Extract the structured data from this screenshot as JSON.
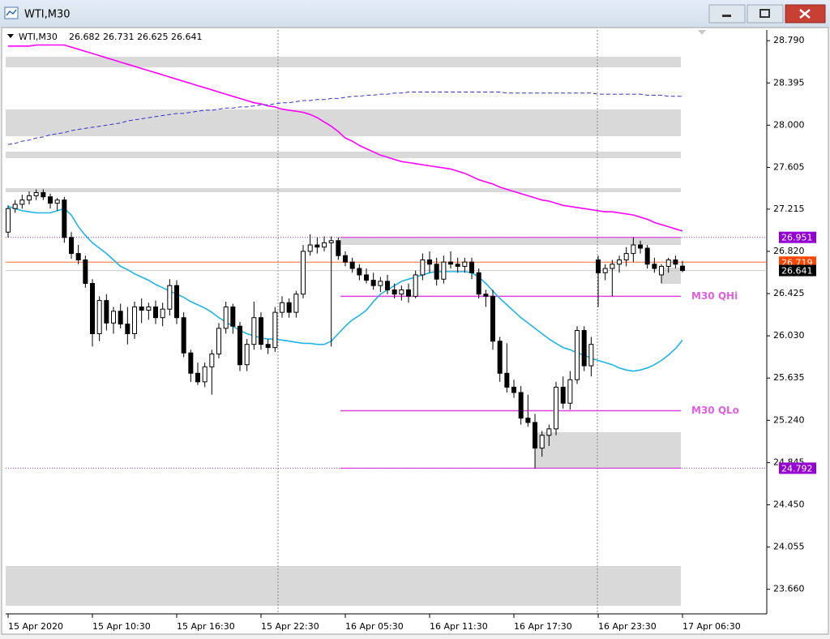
{
  "chart_data": {
    "type": "candlestick",
    "symbol": "WTI,M30",
    "categories": [
      "15 Apr 2020",
      null,
      null,
      null,
      null,
      null,
      null,
      null,
      null,
      null,
      null,
      null,
      "15 Apr 10:30",
      null,
      null,
      null,
      null,
      null,
      null,
      null,
      null,
      null,
      null,
      null,
      "15 Apr 16:30",
      null,
      null,
      null,
      null,
      null,
      null,
      null,
      null,
      null,
      null,
      null,
      "15 Apr 22:30",
      null,
      null,
      null,
      null,
      null,
      null,
      null,
      null,
      null,
      null,
      null,
      "16 Apr 05:30",
      null,
      null,
      null,
      null,
      null,
      null,
      null,
      null,
      null,
      null,
      null,
      "16 Apr 11:30",
      null,
      null,
      null,
      null,
      null,
      null,
      null,
      null,
      null,
      null,
      null,
      "16 Apr 17:30",
      null,
      null,
      null,
      null,
      null,
      null,
      null,
      null,
      null,
      null,
      null,
      "16 Apr 23:30",
      null,
      null,
      null,
      null,
      null,
      null,
      null,
      null,
      null,
      null,
      null,
      "17 Apr 06:30"
    ],
    "open": [
      27,
      27.22,
      27.26,
      27.3,
      27.34,
      27.37,
      27.33,
      27.27,
      27.3,
      26.95,
      26.8,
      26.74,
      26.52,
      26.05,
      26.36,
      26.15,
      26.26,
      26.14,
      26.05,
      26.3,
      26.27,
      26.3,
      26.2,
      26.28,
      26.5,
      26.2,
      25.87,
      25.68,
      25.6,
      25.74,
      25.86,
      26.1,
      26.3,
      26.12,
      25.76,
      25.95,
      26.2,
      25.95,
      25.92,
      26.25,
      26.34,
      26.25,
      26.42,
      26.82,
      26.88,
      26.86,
      26.9,
      26.92,
      26.78,
      26.72,
      26.66,
      26.6,
      26.55,
      26.5,
      26.54,
      26.46,
      26.42,
      26.46,
      26.4,
      26.6,
      26.74,
      26.7,
      26.56,
      26.72,
      26.7,
      26.68,
      26.72,
      26.62,
      26.42,
      26.4,
      25.98,
      25.68,
      25.55,
      25.5,
      25.26,
      25.22,
      24.98,
      25.1,
      25.16,
      25.55,
      25.4,
      25.62,
      26.08,
      25.75,
      26.74,
      26.62,
      26.66,
      26.7,
      26.74,
      26.8,
      26.88,
      26.85,
      26.7,
      26.6,
      26.68,
      26.74,
      26.682
    ],
    "high": [
      27.25,
      27.3,
      27.35,
      27.38,
      27.4,
      27.4,
      27.36,
      27.32,
      27.33,
      27,
      26.88,
      26.78,
      26.56,
      26.4,
      26.42,
      26.3,
      26.33,
      26.3,
      26.35,
      26.38,
      26.34,
      26.36,
      26.34,
      26.56,
      26.55,
      26.25,
      25.9,
      25.78,
      25.78,
      25.9,
      26.15,
      26.35,
      26.33,
      26.16,
      26,
      26.35,
      26.25,
      26,
      26.3,
      26.4,
      26.38,
      26.45,
      26.88,
      26.98,
      26.95,
      26.96,
      26.96,
      26.95,
      26.82,
      26.76,
      26.7,
      26.66,
      26.62,
      26.58,
      26.6,
      26.52,
      26.5,
      26.52,
      26.64,
      26.8,
      26.82,
      26.76,
      26.78,
      26.82,
      26.76,
      26.76,
      26.76,
      26.66,
      26.46,
      26.46,
      26.02,
      25.96,
      25.62,
      25.56,
      25.48,
      25.3,
      25.14,
      25.2,
      25.6,
      25.65,
      25.7,
      26.12,
      26.12,
      26.02,
      26.78,
      26.7,
      26.74,
      26.78,
      26.86,
      26.951,
      26.92,
      26.88,
      26.76,
      26.7,
      26.76,
      26.78,
      26.731
    ],
    "low": [
      26.95,
      27.18,
      27.22,
      27.26,
      27.3,
      27.3,
      27.22,
      27.2,
      26.9,
      26.75,
      26.7,
      26.48,
      25.93,
      25.98,
      26.08,
      26.05,
      26.1,
      25.95,
      26,
      26.15,
      26.18,
      26.14,
      26.12,
      26.22,
      26.14,
      25.83,
      25.6,
      25.57,
      25.55,
      25.48,
      25.82,
      26.05,
      26.05,
      25.7,
      25.7,
      25.9,
      25.9,
      25.86,
      25.88,
      26.2,
      26.2,
      26.2,
      26.38,
      26.78,
      26.8,
      26.82,
      25.93,
      26.74,
      26.68,
      26.62,
      26.55,
      26.52,
      26.46,
      26.44,
      26.42,
      26.38,
      26.36,
      26.34,
      26.38,
      26.55,
      26.62,
      26.5,
      26.52,
      26.66,
      26.62,
      26.62,
      26.56,
      26.38,
      26.3,
      25.9,
      25.6,
      25.5,
      25.45,
      25.2,
      25.18,
      24.792,
      24.9,
      25,
      25.1,
      25.35,
      25.34,
      25.58,
      25.7,
      25.65,
      26.3,
      26.55,
      26.4,
      26.62,
      26.68,
      26.72,
      26.8,
      26.66,
      26.62,
      26.52,
      26.62,
      26.66,
      26.625
    ],
    "close": [
      27.22,
      27.26,
      27.3,
      27.34,
      27.37,
      27.33,
      27.27,
      27.3,
      26.95,
      26.8,
      26.74,
      26.52,
      26.05,
      26.36,
      26.15,
      26.26,
      26.14,
      26.05,
      26.3,
      26.27,
      26.3,
      26.2,
      26.28,
      26.5,
      26.2,
      25.87,
      25.68,
      25.6,
      25.74,
      25.86,
      26.1,
      26.3,
      26.12,
      25.76,
      25.95,
      26.2,
      25.95,
      25.92,
      26.25,
      26.34,
      26.25,
      26.42,
      26.82,
      26.88,
      26.86,
      26.9,
      26.92,
      26.78,
      26.72,
      26.66,
      26.6,
      26.55,
      26.5,
      26.54,
      26.46,
      26.42,
      26.46,
      26.4,
      26.6,
      26.74,
      26.7,
      26.56,
      26.72,
      26.7,
      26.68,
      26.72,
      26.62,
      26.42,
      26.4,
      25.98,
      25.68,
      25.55,
      25.5,
      25.26,
      25.22,
      24.98,
      25.1,
      25.16,
      25.55,
      25.4,
      25.62,
      26.08,
      25.75,
      25.95,
      26.62,
      26.66,
      26.7,
      26.74,
      26.8,
      26.88,
      26.85,
      26.7,
      26.66,
      26.68,
      26.74,
      26.7,
      26.641
    ],
    "overlays": [
      {
        "color": "#ff00ff",
        "dashed": false,
        "values": [
          28.74,
          28.74,
          28.74,
          28.74,
          28.75,
          28.75,
          28.75,
          28.75,
          28.75,
          28.73,
          28.71,
          28.69,
          28.67,
          28.65,
          28.63,
          28.61,
          28.59,
          28.57,
          28.55,
          28.53,
          28.51,
          28.49,
          28.47,
          28.45,
          28.43,
          28.41,
          28.39,
          28.37,
          28.35,
          28.33,
          28.31,
          28.29,
          28.27,
          28.25,
          28.23,
          28.21,
          28.2,
          28.18,
          28.17,
          28.15,
          28.14,
          28.13,
          28.12,
          28.1,
          28.07,
          28.03,
          27.99,
          27.94,
          27.88,
          27.85,
          27.81,
          27.78,
          27.75,
          27.72,
          27.7,
          27.68,
          27.66,
          27.65,
          27.64,
          27.63,
          27.62,
          27.61,
          27.6,
          27.59,
          27.57,
          27.55,
          27.52,
          27.49,
          27.47,
          27.45,
          27.42,
          27.4,
          27.38,
          27.36,
          27.34,
          27.32,
          27.3,
          27.29,
          27.27,
          27.25,
          27.24,
          27.23,
          27.22,
          27.21,
          27.2,
          27.19,
          27.19,
          27.18,
          27.17,
          27.16,
          27.14,
          27.12,
          27.09,
          27.07,
          27.05,
          27.03,
          27.01
        ]
      },
      {
        "color": "#3333cc",
        "dashed": true,
        "values": [
          27.82,
          27.83,
          27.85,
          27.86,
          27.88,
          27.89,
          27.91,
          27.92,
          27.93,
          27.95,
          27.96,
          27.97,
          27.98,
          27.99,
          28,
          28.01,
          28.02,
          28.04,
          28.05,
          28.06,
          28.07,
          28.08,
          28.09,
          28.1,
          28.11,
          28.11,
          28.12,
          28.13,
          28.14,
          28.14,
          28.15,
          28.16,
          28.16,
          28.17,
          28.17,
          28.18,
          28.19,
          28.19,
          28.2,
          28.21,
          28.21,
          28.22,
          28.23,
          28.23,
          28.24,
          28.24,
          28.25,
          28.25,
          28.26,
          28.27,
          28.27,
          28.28,
          28.28,
          28.29,
          28.29,
          28.3,
          28.3,
          28.31,
          28.31,
          28.31,
          28.31,
          28.31,
          28.31,
          28.31,
          28.31,
          28.31,
          28.31,
          28.31,
          28.31,
          28.31,
          28.31,
          28.3,
          28.3,
          28.3,
          28.3,
          28.3,
          28.3,
          28.3,
          28.3,
          28.3,
          28.3,
          28.3,
          28.3,
          28.3,
          28.29,
          28.29,
          28.29,
          28.29,
          28.29,
          28.29,
          28.29,
          28.28,
          28.28,
          28.28,
          28.27,
          28.27,
          28.27
        ]
      },
      {
        "color": "#1eb4e6",
        "dashed": false,
        "values": [
          27.24,
          27.22,
          27.2,
          27.19,
          27.18,
          27.18,
          27.18,
          27.2,
          27.22,
          27.16,
          27.05,
          26.97,
          26.9,
          26.85,
          26.8,
          26.74,
          26.68,
          26.65,
          26.61,
          26.58,
          26.55,
          26.51,
          26.48,
          26.45,
          26.42,
          26.39,
          26.35,
          26.32,
          26.29,
          26.25,
          26.2,
          26.16,
          26.12,
          26.08,
          26.05,
          26.03,
          26.01,
          26,
          26,
          25.99,
          25.98,
          25.97,
          25.96,
          25.96,
          25.95,
          25.95,
          25.98,
          26.05,
          26.12,
          26.18,
          26.22,
          26.27,
          26.35,
          26.42,
          26.46,
          26.5,
          26.54,
          26.56,
          26.58,
          26.6,
          26.62,
          26.63,
          26.63,
          26.63,
          26.63,
          26.63,
          26.62,
          26.58,
          26.52,
          26.45,
          26.38,
          26.32,
          26.26,
          26.2,
          26.15,
          26.1,
          26.05,
          26,
          25.96,
          25.92,
          25.9,
          25.87,
          25.85,
          25.82,
          25.8,
          25.78,
          25.76,
          25.73,
          25.71,
          25.7,
          25.71,
          25.73,
          25.76,
          25.8,
          25.85,
          25.91,
          25.99
        ]
      }
    ],
    "levels": [
      {
        "label": "M30 QHi",
        "value": 26.4
      },
      {
        "label": "M30 QLo",
        "value": 25.33
      }
    ],
    "price_markers": [
      {
        "value": 26.951,
        "color": "#9400d3"
      },
      {
        "value": 26.719,
        "color": "#ff4500"
      },
      {
        "value": 26.641,
        "color": "#000000"
      },
      {
        "value": 24.792,
        "color": "#9400d3"
      }
    ],
    "ylim": [
      23.43,
      28.89
    ],
    "yticks": [
      {
        "value": 28.79,
        "label": "28.790"
      },
      {
        "value": 28.395,
        "label": "28.395"
      },
      {
        "value": 28,
        "label": "28.000"
      },
      {
        "value": 27.605,
        "label": "27.605"
      },
      {
        "value": 27.215,
        "label": "27.215"
      },
      {
        "value": 26.82,
        "label": "26.820"
      },
      {
        "value": 26.425,
        "label": "26.425"
      },
      {
        "value": 26.03,
        "label": "26.030"
      },
      {
        "value": 25.635,
        "label": "25.635"
      },
      {
        "value": 25.24,
        "label": "25.240"
      },
      {
        "value": 24.845,
        "label": "24.845"
      },
      {
        "value": 24.45,
        "label": "24.450"
      },
      {
        "value": 24.055,
        "label": "24.055"
      },
      {
        "value": 23.66,
        "label": "23.660"
      }
    ]
  }
}
